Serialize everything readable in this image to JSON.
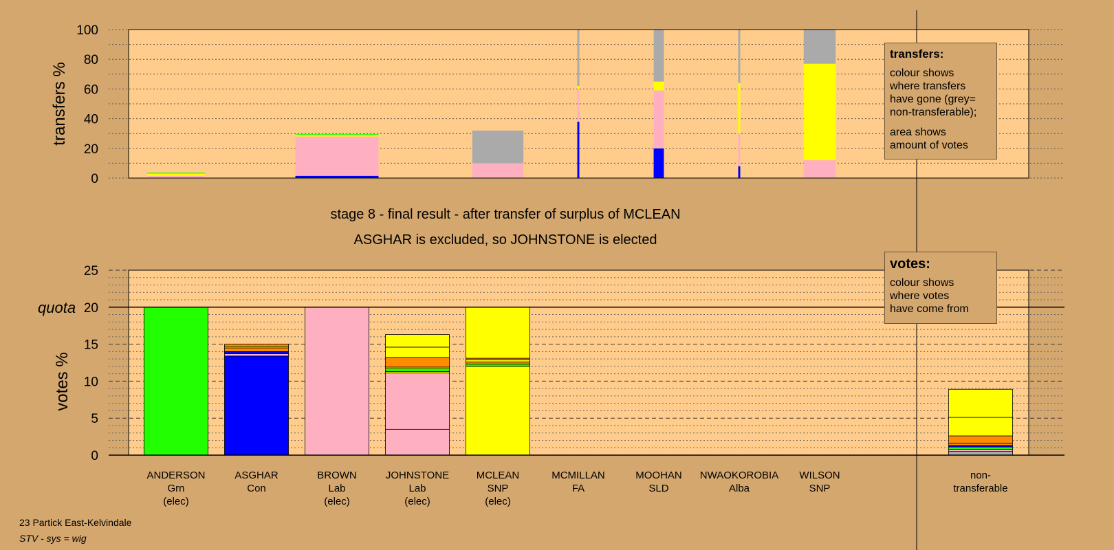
{
  "chart_data": [
    {
      "type": "bar",
      "stacked": true,
      "ylabel": "transfers %",
      "ylim": [
        0,
        100
      ],
      "yticks": [
        0,
        20,
        40,
        60,
        80,
        100
      ],
      "grid": "dotted",
      "categories": [
        "ANDERSON",
        "ASGHAR",
        "BROWN",
        "JOHNSTONE",
        "MCLEAN",
        "MCMILLAN",
        "MOOHAN",
        "NWAOKOROBIA",
        "WILSON"
      ],
      "bars": [
        {
          "candidate": "ANDERSON",
          "width_share": 0.9,
          "segments": [
            {
              "party": "Lab",
              "color": "#ffb0c0",
              "value": 1.5
            },
            {
              "party": "SNP",
              "color": "#ffff00",
              "value": 1.5
            },
            {
              "party": "Grn",
              "color": "#22ff00",
              "value": 0.6
            }
          ]
        },
        {
          "candidate": "BROWN",
          "width_share": 1.3,
          "segments": [
            {
              "party": "Con",
              "color": "#0000ff",
              "value": 1.5
            },
            {
              "party": "Lab",
              "color": "#ffb0c0",
              "value": 26.5
            },
            {
              "party": "SNP",
              "color": "#ffff00",
              "value": 1
            },
            {
              "party": "Grn",
              "color": "#22ff00",
              "value": 0.6
            }
          ]
        },
        {
          "candidate": "MCLEAN",
          "width_share": 0.8,
          "segments": [
            {
              "party": "Lab",
              "color": "#ffb0c0",
              "value": 10
            },
            {
              "party": "non-transferable",
              "color": "#aaaaaa",
              "value": 22
            }
          ]
        },
        {
          "candidate": "MCMILLAN",
          "width_share": 0.03,
          "segments": [
            {
              "party": "Con",
              "color": "#0000ff",
              "value": 38
            },
            {
              "party": "Lab",
              "color": "#ffb0c0",
              "value": 22
            },
            {
              "party": "SNP",
              "color": "#ffff00",
              "value": 2
            },
            {
              "party": "non-transferable",
              "color": "#aaaaaa",
              "value": 38
            }
          ]
        },
        {
          "candidate": "MOOHAN",
          "width_share": 0.16,
          "segments": [
            {
              "party": "Con",
              "color": "#0000ff",
              "value": 20
            },
            {
              "party": "Lab",
              "color": "#ffb0c0",
              "value": 39
            },
            {
              "party": "SNP",
              "color": "#ffff00",
              "value": 6
            },
            {
              "party": "non-transferable",
              "color": "#aaaaaa",
              "value": 35
            }
          ]
        },
        {
          "candidate": "NWAOKOROBIA",
          "width_share": 0.03,
          "segments": [
            {
              "party": "Con",
              "color": "#0000ff",
              "value": 8
            },
            {
              "party": "Lab",
              "color": "#ffb0c0",
              "value": 22
            },
            {
              "party": "SNP",
              "color": "#ffff00",
              "value": 34
            },
            {
              "party": "non-transferable",
              "color": "#aaaaaa",
              "value": 36
            }
          ]
        },
        {
          "candidate": "WILSON",
          "width_share": 0.5,
          "segments": [
            {
              "party": "Lab",
              "color": "#ffb0c0",
              "value": 12
            },
            {
              "party": "SNP",
              "color": "#ffff00",
              "value": 65
            },
            {
              "party": "non-transferable",
              "color": "#aaaaaa",
              "value": 23
            }
          ]
        }
      ]
    },
    {
      "type": "bar",
      "stacked": true,
      "ylabel": "votes %",
      "ylim": [
        0,
        25
      ],
      "yticks": [
        0,
        5,
        10,
        15,
        20,
        25
      ],
      "quota": 20,
      "quota_label": "quota",
      "grid": "dotted",
      "categories": [
        "ANDERSON",
        "ASGHAR",
        "BROWN",
        "JOHNSTONE",
        "MCLEAN",
        "MCMILLAN",
        "MOOHAN",
        "NWAOKOROBIA",
        "WILSON",
        "non-transferable"
      ],
      "bars": [
        {
          "candidate": "ANDERSON",
          "segments": [
            {
              "party": "Grn",
              "color": "#22ff00",
              "value": 20
            }
          ]
        },
        {
          "candidate": "ASGHAR",
          "segments": [
            {
              "party": "Con",
              "color": "#0000ff",
              "value": 13.4
            },
            {
              "party": "Lab",
              "color": "#ffb0c0",
              "value": 0.3
            },
            {
              "party": "Con",
              "color": "#0000ff",
              "value": 0.3
            },
            {
              "party": "FA",
              "color": "#ff8c00",
              "value": 0.5
            },
            {
              "party": "SNP",
              "color": "#ffff00",
              "value": 0.2
            },
            {
              "party": "FA",
              "color": "#ff8c00",
              "value": 0.3
            }
          ]
        },
        {
          "candidate": "BROWN",
          "segments": [
            {
              "party": "Lab",
              "color": "#ffb0c0",
              "value": 20
            }
          ]
        },
        {
          "candidate": "JOHNSTONE",
          "segments": [
            {
              "party": "Lab",
              "color": "#ffb0c0",
              "value": 3.5
            },
            {
              "party": "Lab",
              "color": "#ffb0c0",
              "value": 7.6
            },
            {
              "party": "SNP",
              "color": "#ffff00",
              "value": 0.2
            },
            {
              "party": "Grn",
              "color": "#22ff00",
              "value": 0.4
            },
            {
              "party": "SNP",
              "color": "#ffff00",
              "value": 0.2
            },
            {
              "party": "FA",
              "color": "#ff8c00",
              "value": 1.3
            },
            {
              "party": "SNP",
              "color": "#ffff00",
              "value": 1.4
            },
            {
              "party": "SNP",
              "color": "#ffff00",
              "value": 1.7
            }
          ]
        },
        {
          "candidate": "MCLEAN",
          "segments": [
            {
              "party": "SNP",
              "color": "#ffff00",
              "value": 12
            },
            {
              "party": "Grn",
              "color": "#22ff00",
              "value": 0.3
            },
            {
              "party": "FA",
              "color": "#ff8c00",
              "value": 0.3
            },
            {
              "party": "SNP",
              "color": "#ffff00",
              "value": 0.3
            },
            {
              "party": "FA",
              "color": "#ff8c00",
              "value": 0.2
            },
            {
              "party": "SNP",
              "color": "#ffff00",
              "value": 6.9
            }
          ]
        },
        {
          "candidate": "non-transferable",
          "segments": [
            {
              "party": "non-transferable",
              "color": "#aaaaaa",
              "value": 0.5
            },
            {
              "party": "Lab",
              "color": "#ffb0c0",
              "value": 0.3
            },
            {
              "party": "Grn",
              "color": "#22ff00",
              "value": 0.3
            },
            {
              "party": "Con",
              "color": "#0000ff",
              "value": 0.2
            },
            {
              "party": "FA",
              "color": "#ff8c00",
              "value": 0.3
            },
            {
              "party": "FA",
              "color": "#ff8c00",
              "value": 1
            },
            {
              "party": "SNP",
              "color": "#ffff00",
              "value": 2.5
            },
            {
              "party": "SNP",
              "color": "#ffff00",
              "value": 3.8
            }
          ]
        }
      ]
    }
  ],
  "candidates": [
    {
      "name": "ANDERSON",
      "party": "Grn",
      "status": "(elec)"
    },
    {
      "name": "ASGHAR",
      "party": "Con",
      "status": ""
    },
    {
      "name": "BROWN",
      "party": "Lab",
      "status": "(elec)"
    },
    {
      "name": "JOHNSTONE",
      "party": "Lab",
      "status": "(elec)"
    },
    {
      "name": "MCLEAN",
      "party": "SNP",
      "status": "(elec)"
    },
    {
      "name": "MCMILLAN",
      "party": "FA",
      "status": ""
    },
    {
      "name": "MOOHAN",
      "party": "SLD",
      "status": ""
    },
    {
      "name": "NWAOKOROBIA",
      "party": "Alba",
      "status": ""
    },
    {
      "name": "WILSON",
      "party": "SNP",
      "status": ""
    }
  ],
  "nontransferable_label": {
    "line1": "non-",
    "line2": "transferable"
  },
  "stage": {
    "line1": "stage 8 - final result - after transfer of surplus of MCLEAN",
    "line2": "ASGHAR is excluded, so JOHNSTONE is elected"
  },
  "legend_transfers": {
    "title": "transfers:",
    "lines_a": [
      "colour shows",
      "where transfers",
      "have gone (grey=",
      "non-transferable);"
    ],
    "lines_b": [
      "area shows",
      "amount of votes"
    ]
  },
  "legend_votes": {
    "title": "votes:",
    "lines": [
      "colour shows",
      "where votes",
      "have come from"
    ]
  },
  "footer": {
    "ward": "23 Partick East-Kelvindale",
    "system": "STV - sys = wig"
  },
  "colors": {
    "background": "#d4a76f",
    "plot_area": "#ffcc8c",
    "Grn": "#22ff00",
    "Con": "#0000ff",
    "Lab": "#ffb0c0",
    "SNP": "#ffff00",
    "FA": "#ff8c00",
    "non-transferable": "#aaaaaa"
  }
}
